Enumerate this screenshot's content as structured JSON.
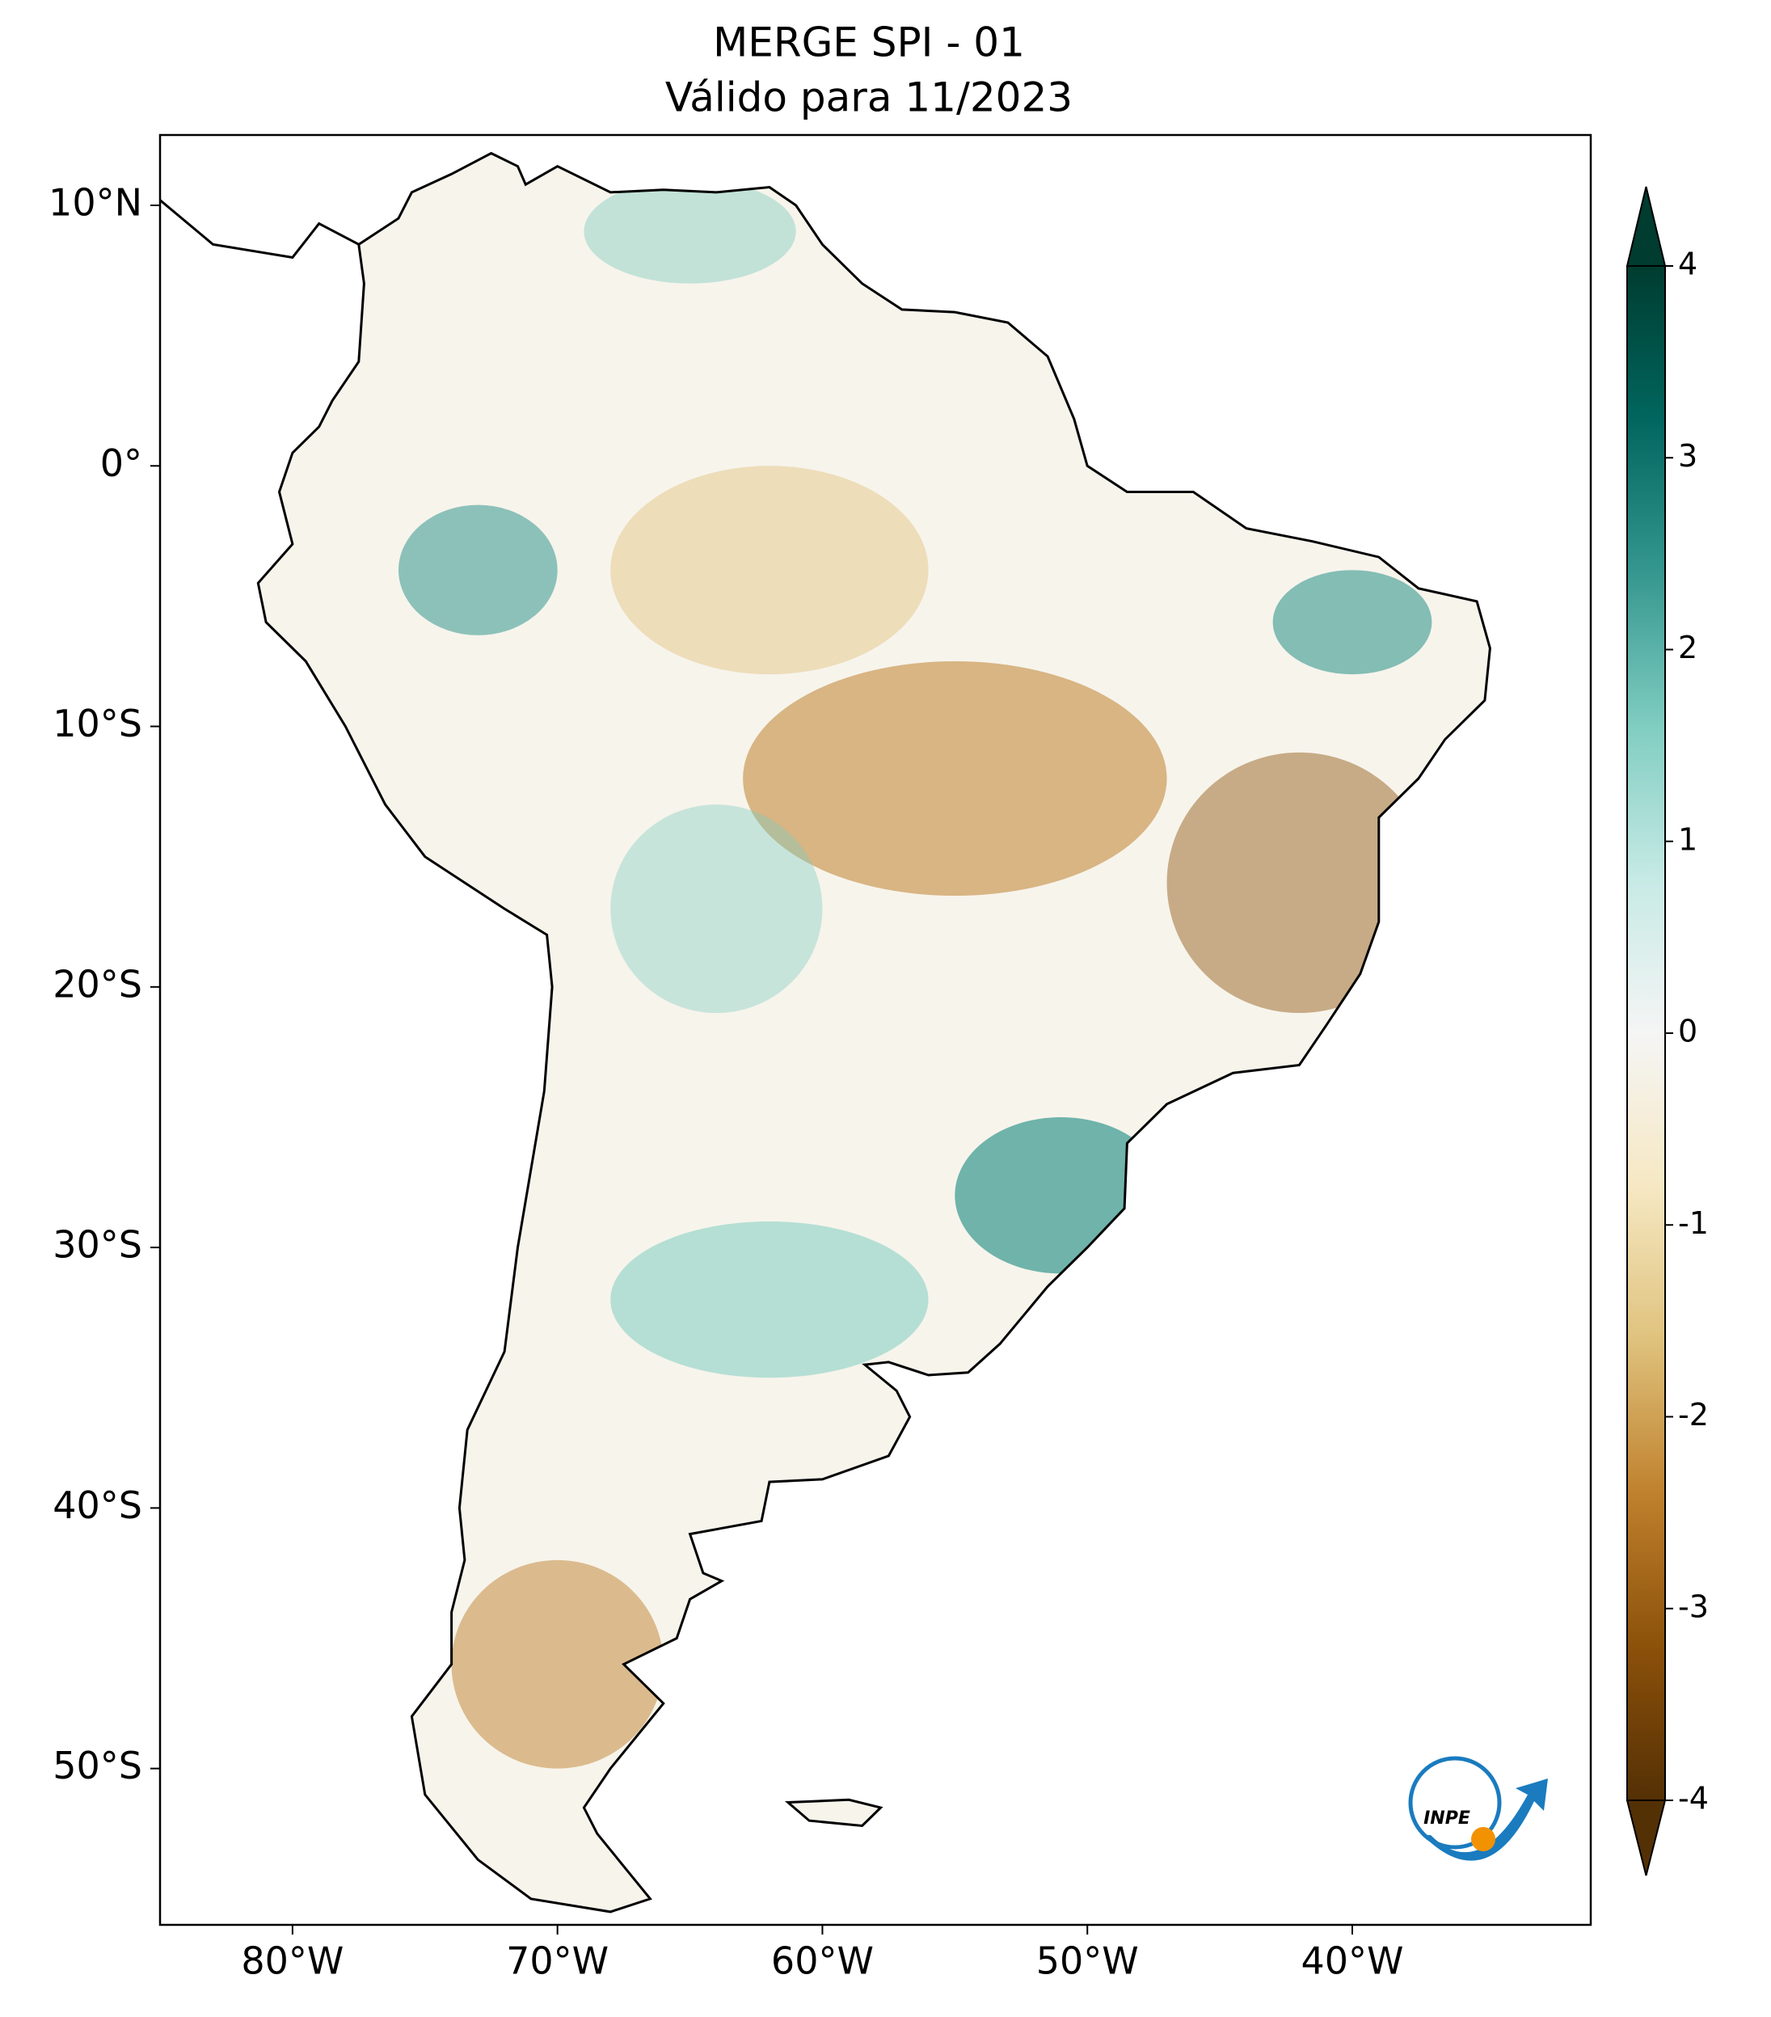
{
  "map": {
    "title": "MERGE   SPI - 01",
    "subtitle": "Válido para 11/2023",
    "lonlim": [
      -85,
      -31
    ],
    "latlim": [
      -56,
      12.7
    ],
    "lon_ticks": [
      {
        "value": -80,
        "label": "80°W"
      },
      {
        "value": -70,
        "label": "70°W"
      },
      {
        "value": -60,
        "label": "60°W"
      },
      {
        "value": -50,
        "label": "50°W"
      },
      {
        "value": -40,
        "label": "40°W"
      }
    ],
    "lat_ticks": [
      {
        "value": 10,
        "label": "10°N"
      },
      {
        "value": 0,
        "label": "0°"
      },
      {
        "value": -10,
        "label": "10°S"
      },
      {
        "value": -20,
        "label": "20°S"
      },
      {
        "value": -30,
        "label": "30°S"
      },
      {
        "value": -40,
        "label": "40°S"
      },
      {
        "value": -50,
        "label": "50°S"
      }
    ],
    "colorbar": {
      "lim": [
        -4,
        4
      ],
      "ticks": [
        -4,
        -3,
        -2,
        -1,
        0,
        1,
        2,
        3,
        4
      ],
      "colors": [
        "#543005",
        "#8c510a",
        "#bf812d",
        "#dfc27d",
        "#f6e8c3",
        "#f5f5f5",
        "#c7eae5",
        "#80cdc1",
        "#35978f",
        "#01665e",
        "#003c30"
      ]
    },
    "logo": "INPE"
  }
}
